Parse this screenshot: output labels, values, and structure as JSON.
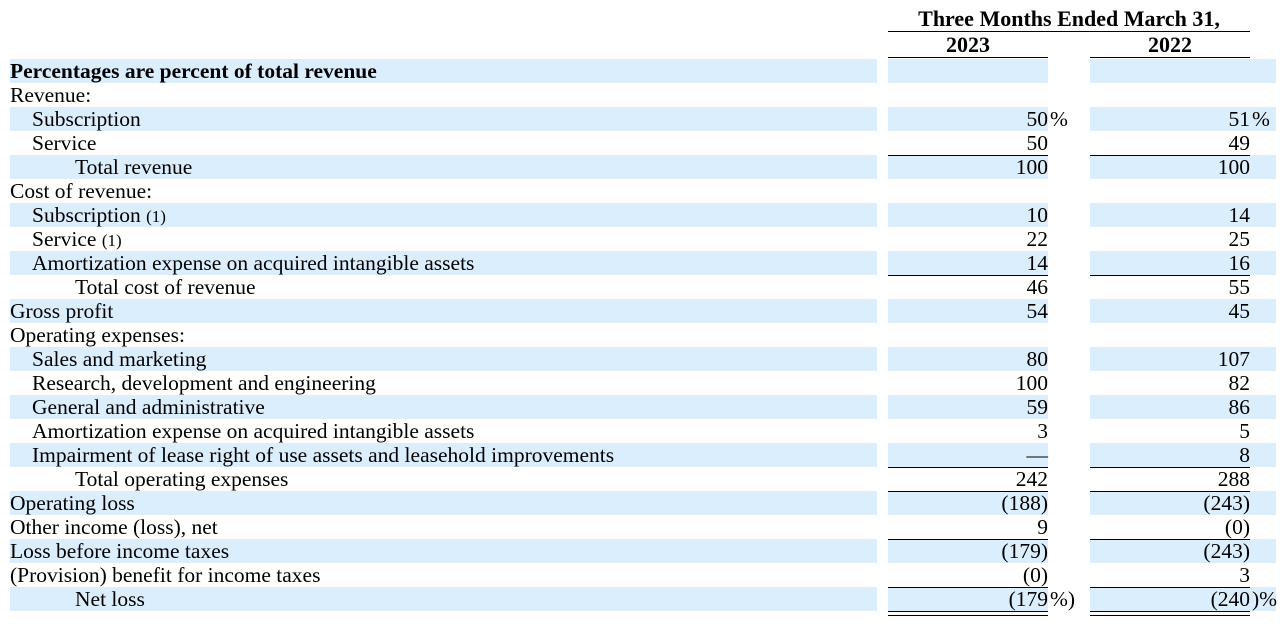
{
  "header": {
    "period_title": "Three Months Ended March 31,",
    "years": [
      "2023",
      "2022"
    ]
  },
  "rows": [
    {
      "label": "Percentages are percent of total revenue",
      "indent": 0,
      "bold": true,
      "shade": true,
      "v1": "",
      "v2": ""
    },
    {
      "label": "Revenue:",
      "indent": 0,
      "shade": false,
      "v1": "",
      "v2": ""
    },
    {
      "label": "Subscription",
      "indent": 1,
      "shade": true,
      "v1": "50",
      "v2": "51",
      "s1": "%",
      "s2": "%"
    },
    {
      "label": "Service",
      "indent": 1,
      "shade": false,
      "v1": "50",
      "v2": "49"
    },
    {
      "label": "Total revenue",
      "indent": 2,
      "shade": true,
      "v1": "100",
      "v2": "100",
      "rule": true
    },
    {
      "label": "Cost of revenue:",
      "indent": 0,
      "shade": false,
      "v1": "",
      "v2": ""
    },
    {
      "label": "Subscription",
      "fn": "(1)",
      "indent": 1,
      "shade": true,
      "v1": "10",
      "v2": "14"
    },
    {
      "label": "Service",
      "fn": "(1)",
      "indent": 1,
      "shade": false,
      "v1": "22",
      "v2": "25"
    },
    {
      "label": "Amortization expense on acquired intangible assets",
      "indent": 1,
      "shade": true,
      "v1": "14",
      "v2": "16"
    },
    {
      "label": "Total cost of revenue",
      "indent": 2,
      "shade": false,
      "v1": "46",
      "v2": "55",
      "rule": true
    },
    {
      "label": "Gross profit",
      "indent": 0,
      "shade": true,
      "v1": "54",
      "v2": "45"
    },
    {
      "label": "Operating expenses:",
      "indent": 0,
      "shade": false,
      "v1": "",
      "v2": ""
    },
    {
      "label": "Sales and marketing",
      "indent": 1,
      "shade": true,
      "v1": "80",
      "v2": "107"
    },
    {
      "label": "Research, development and engineering",
      "indent": 1,
      "shade": false,
      "v1": "100",
      "v2": "82"
    },
    {
      "label": "General and administrative",
      "indent": 1,
      "shade": true,
      "v1": "59",
      "v2": "86"
    },
    {
      "label": "Amortization expense on acquired intangible assets",
      "indent": 1,
      "shade": false,
      "v1": "3",
      "v2": "5"
    },
    {
      "label": "Impairment of lease right of use assets and leasehold improvements",
      "indent": 1,
      "shade": true,
      "v1": "—",
      "v2": "8"
    },
    {
      "label": "Total operating expenses",
      "indent": 2,
      "shade": false,
      "v1": "242",
      "v2": "288",
      "rule": true
    },
    {
      "label": "Operating loss",
      "indent": 0,
      "shade": true,
      "v1": "(188)",
      "v2": "(243)",
      "rule": true
    },
    {
      "label": "Other income (loss), net",
      "indent": 0,
      "shade": false,
      "v1": "9",
      "v2": "(0)"
    },
    {
      "label": "Loss before income taxes",
      "indent": 0,
      "shade": true,
      "v1": "(179)",
      "v2": "(243)",
      "rule": true
    },
    {
      "label": "(Provision) benefit for income taxes",
      "indent": 0,
      "shade": false,
      "v1": "(0)",
      "v2": "3"
    },
    {
      "label": "Net loss",
      "indent": 2,
      "shade": true,
      "v1": "(179",
      "v2": "(240",
      "s1": "%)",
      "s2": ")%",
      "rule": true,
      "double": true
    }
  ]
}
